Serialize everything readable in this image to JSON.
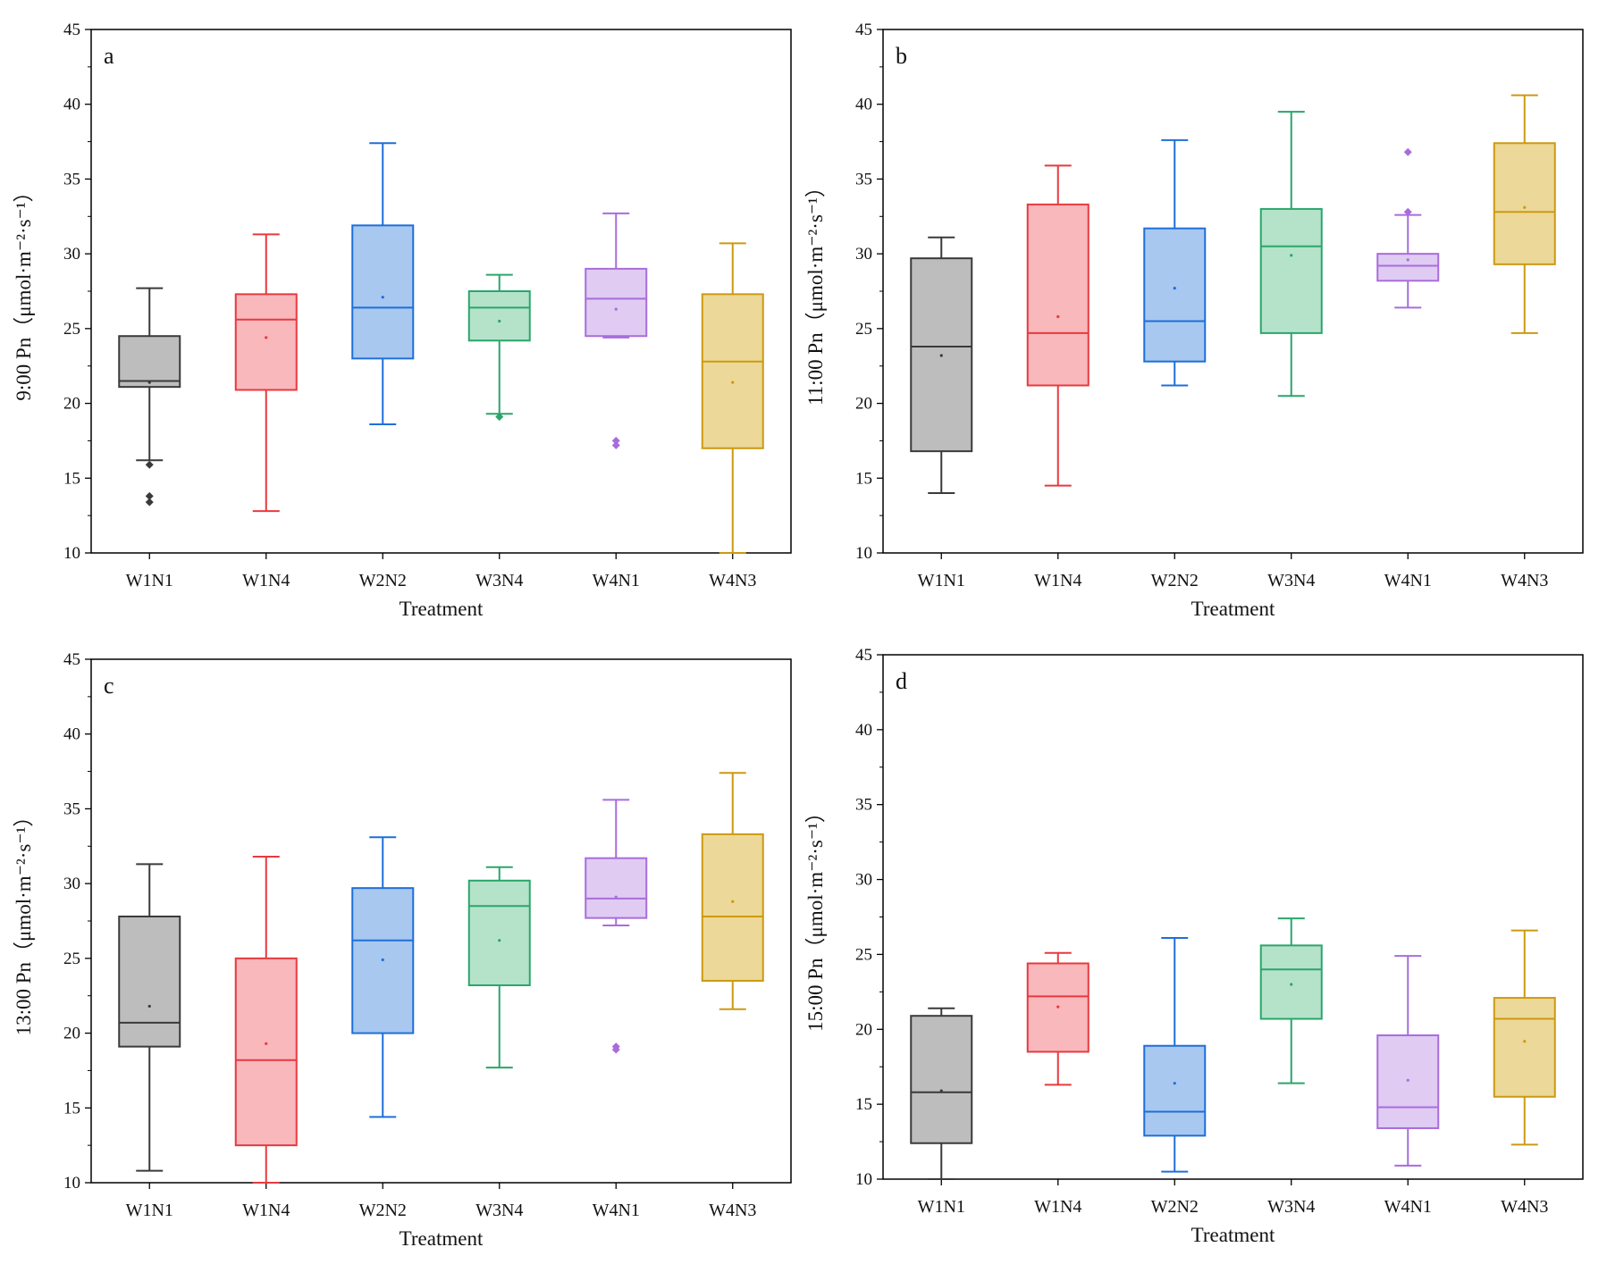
{
  "chart_data": [
    {
      "type": "box",
      "panel_label": "a",
      "xlabel": "Treatment",
      "ylabel": "9:00 Pn（μmol·m⁻²·s⁻¹）",
      "ylim": [
        10,
        45
      ],
      "yticks": [
        10,
        15,
        20,
        25,
        30,
        35,
        40,
        45
      ],
      "categories": [
        "W1N1",
        "W1N4",
        "W2N2",
        "W3N4",
        "W4N1",
        "W4N3"
      ],
      "series": [
        {
          "name": "W1N1",
          "min": 16.2,
          "q1": 21.1,
          "median": 21.5,
          "q3": 24.5,
          "max": 27.7,
          "mean": 21.4,
          "outliers": [
            15.9,
            13.8,
            13.4
          ]
        },
        {
          "name": "W1N4",
          "min": 12.8,
          "q1": 20.9,
          "median": 25.6,
          "q3": 27.3,
          "max": 31.3,
          "mean": 24.4,
          "outliers": []
        },
        {
          "name": "W2N2",
          "min": 18.6,
          "q1": 23.0,
          "median": 26.4,
          "q3": 31.9,
          "max": 37.4,
          "mean": 27.1,
          "outliers": []
        },
        {
          "name": "W3N4",
          "min": 19.3,
          "q1": 24.2,
          "median": 26.4,
          "q3": 27.5,
          "max": 28.6,
          "mean": 25.5,
          "outliers": [
            19.1
          ]
        },
        {
          "name": "W4N1",
          "min": 24.4,
          "q1": 24.5,
          "median": 27.0,
          "q3": 29.0,
          "max": 32.7,
          "mean": 26.3,
          "outliers": [
            17.5,
            17.2
          ]
        },
        {
          "name": "W4N3",
          "min": 10.0,
          "q1": 17.0,
          "median": 22.8,
          "q3": 27.3,
          "max": 30.7,
          "mean": 21.4,
          "outliers": []
        }
      ]
    },
    {
      "type": "box",
      "panel_label": "b",
      "xlabel": "Treatment",
      "ylabel": "11:00 Pn（μmol·m⁻²·s⁻¹）",
      "ylim": [
        10,
        45
      ],
      "yticks": [
        10,
        15,
        20,
        25,
        30,
        35,
        40,
        45
      ],
      "categories": [
        "W1N1",
        "W1N4",
        "W2N2",
        "W3N4",
        "W4N1",
        "W4N3"
      ],
      "series": [
        {
          "name": "W1N1",
          "min": 14.0,
          "q1": 16.8,
          "median": 23.8,
          "q3": 29.7,
          "max": 31.1,
          "mean": 23.2,
          "outliers": []
        },
        {
          "name": "W1N4",
          "min": 14.5,
          "q1": 21.2,
          "median": 24.7,
          "q3": 33.3,
          "max": 35.9,
          "mean": 25.8,
          "outliers": []
        },
        {
          "name": "W2N2",
          "min": 21.2,
          "q1": 22.8,
          "median": 25.5,
          "q3": 31.7,
          "max": 37.6,
          "mean": 27.7,
          "outliers": []
        },
        {
          "name": "W3N4",
          "min": 20.5,
          "q1": 24.7,
          "median": 30.5,
          "q3": 33.0,
          "max": 39.5,
          "mean": 29.9,
          "outliers": []
        },
        {
          "name": "W4N1",
          "min": 26.4,
          "q1": 28.2,
          "median": 29.2,
          "q3": 30.0,
          "max": 32.6,
          "mean": 29.6,
          "outliers": [
            36.8,
            32.8
          ]
        },
        {
          "name": "W4N3",
          "min": 24.7,
          "q1": 29.3,
          "median": 32.8,
          "q3": 37.4,
          "max": 40.6,
          "mean": 33.1,
          "outliers": []
        }
      ]
    },
    {
      "type": "box",
      "panel_label": "c",
      "xlabel": "Treatment",
      "ylabel": "13:00 Pn（μmol·m⁻²·s⁻¹）",
      "ylim": [
        10,
        45
      ],
      "yticks": [
        10,
        15,
        20,
        25,
        30,
        35,
        40,
        45
      ],
      "categories": [
        "W1N1",
        "W1N4",
        "W2N2",
        "W3N4",
        "W4N1",
        "W4N3"
      ],
      "series": [
        {
          "name": "W1N1",
          "min": 10.8,
          "q1": 19.1,
          "median": 20.7,
          "q3": 27.8,
          "max": 31.3,
          "mean": 21.8,
          "outliers": []
        },
        {
          "name": "W1N4",
          "min": 10.0,
          "q1": 12.5,
          "median": 18.2,
          "q3": 25.0,
          "max": 31.8,
          "mean": 19.3,
          "outliers": []
        },
        {
          "name": "W2N2",
          "min": 14.4,
          "q1": 20.0,
          "median": 26.2,
          "q3": 29.7,
          "max": 33.1,
          "mean": 24.9,
          "outliers": []
        },
        {
          "name": "W3N4",
          "min": 17.7,
          "q1": 23.2,
          "median": 28.5,
          "q3": 30.2,
          "max": 31.1,
          "mean": 26.2,
          "outliers": []
        },
        {
          "name": "W4N1",
          "min": 27.2,
          "q1": 27.7,
          "median": 29.0,
          "q3": 31.7,
          "max": 35.6,
          "mean": 29.1,
          "outliers": [
            19.1,
            18.9
          ]
        },
        {
          "name": "W4N3",
          "min": 21.6,
          "q1": 23.5,
          "median": 27.8,
          "q3": 33.3,
          "max": 37.4,
          "mean": 28.8,
          "outliers": []
        }
      ]
    },
    {
      "type": "box",
      "panel_label": "d",
      "xlabel": "Treatment",
      "ylabel": "15:00 Pn（μmol·m⁻²·s⁻¹）",
      "ylim": [
        10,
        45
      ],
      "yticks": [
        10,
        15,
        20,
        25,
        30,
        35,
        40,
        45
      ],
      "categories": [
        "W1N1",
        "W1N4",
        "W2N2",
        "W3N4",
        "W4N1",
        "W4N3"
      ],
      "series": [
        {
          "name": "W1N1",
          "min": 10.0,
          "q1": 12.4,
          "median": 15.8,
          "q3": 20.9,
          "max": 21.4,
          "mean": 15.9,
          "outliers": []
        },
        {
          "name": "W1N4",
          "min": 16.3,
          "q1": 18.5,
          "median": 22.2,
          "q3": 24.4,
          "max": 25.1,
          "mean": 21.5,
          "outliers": []
        },
        {
          "name": "W2N2",
          "min": 10.5,
          "q1": 12.9,
          "median": 14.5,
          "q3": 18.9,
          "max": 26.1,
          "mean": 16.4,
          "outliers": []
        },
        {
          "name": "W3N4",
          "min": 16.4,
          "q1": 20.7,
          "median": 24.0,
          "q3": 25.6,
          "max": 27.4,
          "mean": 23.0,
          "outliers": []
        },
        {
          "name": "W4N1",
          "min": 10.9,
          "q1": 13.4,
          "median": 14.8,
          "q3": 19.6,
          "max": 24.9,
          "mean": 16.6,
          "outliers": []
        },
        {
          "name": "W4N3",
          "min": 12.3,
          "q1": 15.5,
          "median": 20.7,
          "q3": 22.1,
          "max": 26.6,
          "mean": 19.2,
          "outliers": []
        }
      ]
    }
  ],
  "colors": {
    "W1N1": {
      "stroke": "#3a3a3a",
      "fill": "#bdbdbd"
    },
    "W1N4": {
      "stroke": "#e8393f",
      "fill": "#f8b8bc"
    },
    "W2N2": {
      "stroke": "#1e6fd9",
      "fill": "#a8c8f0"
    },
    "W3N4": {
      "stroke": "#2aa66a",
      "fill": "#b4e3ca"
    },
    "W4N1": {
      "stroke": "#a86ddb",
      "fill": "#e0cbf3"
    },
    "W4N3": {
      "stroke": "#cc9a10",
      "fill": "#ecd898"
    }
  }
}
